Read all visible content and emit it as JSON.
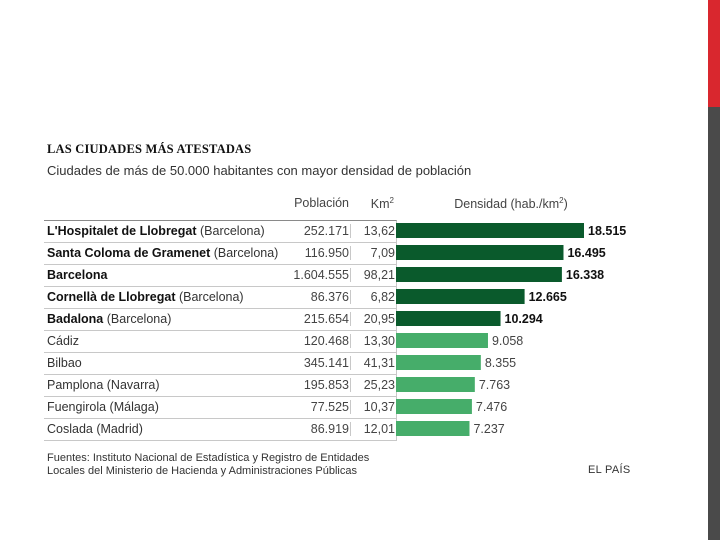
{
  "title": "LAS CIUDADES MÁS ATESTADAS",
  "subtitle": "Ciudades de más de 50.000 habitantes con mayor densidad de población",
  "headers": {
    "poblacion": "Población",
    "km": "Km",
    "km_sup": "2",
    "densidad": "Densidad (hab./km",
    "densidad_sup": "2",
    "densidad_end": ")"
  },
  "rows": [
    {
      "name": "L'Hospitalet de Llobregat",
      "province": " (Barcelona)",
      "poblacion": "252.171",
      "km2": "13,62"
    },
    {
      "name": "Santa Coloma de Gramenet",
      "province": " (Barcelona)",
      "poblacion": "116.950",
      "km2": "7,09"
    },
    {
      "name": "Barcelona",
      "province": "",
      "poblacion": "1.604.555",
      "km2": "98,21"
    },
    {
      "name": "Cornellà de Llobregat",
      "province": " (Barcelona)",
      "poblacion": "86.376",
      "km2": "6,82"
    },
    {
      "name": "Badalona",
      "province": " (Barcelona)",
      "poblacion": "215.654",
      "km2": "20,95"
    },
    {
      "name": "",
      "province": "Cádiz",
      "poblacion": "120.468",
      "km2": "13,30"
    },
    {
      "name": "",
      "province": "Bilbao",
      "poblacion": "345.141",
      "km2": "41,31"
    },
    {
      "name": "",
      "province": "Pamplona (Navarra)",
      "poblacion": "195.853",
      "km2": "25,23"
    },
    {
      "name": "",
      "province": "Fuengirola (Málaga)",
      "poblacion": "77.525",
      "km2": "10,37"
    },
    {
      "name": "",
      "province": "Coslada (Madrid)",
      "poblacion": "86.919",
      "km2": "12,01"
    }
  ],
  "chart_data": {
    "type": "bar",
    "orientation": "horizontal",
    "categories": [
      "L'Hospitalet de Llobregat",
      "Santa Coloma de Gramenet",
      "Barcelona",
      "Cornellà de Llobregat",
      "Badalona",
      "Cádiz",
      "Bilbao",
      "Pamplona",
      "Fuengirola",
      "Coslada"
    ],
    "values": [
      18515,
      16495,
      16338,
      12665,
      10294,
      9058,
      8355,
      7763,
      7476,
      7237
    ],
    "labels": [
      "18.515",
      "16.495",
      "16.338",
      "12.665",
      "10.294",
      "9.058",
      "8.355",
      "7.763",
      "7.476",
      "7.237"
    ],
    "bold_labels": [
      true,
      true,
      true,
      true,
      true,
      false,
      false,
      false,
      false,
      false
    ],
    "colors": {
      "top": "#0a5a2c",
      "rest": "#46ad6a"
    },
    "top_count": 5
  },
  "sources": {
    "line1": "Fuentes: Instituto Nacional de Estadística y Registro de Entidades",
    "line2": "Locales del Ministerio de Hacienda y Administraciones Públicas"
  },
  "brand": "EL PAÍS",
  "accent_colors": {
    "red": "#d9272e",
    "dark": "#4a4a4a"
  }
}
